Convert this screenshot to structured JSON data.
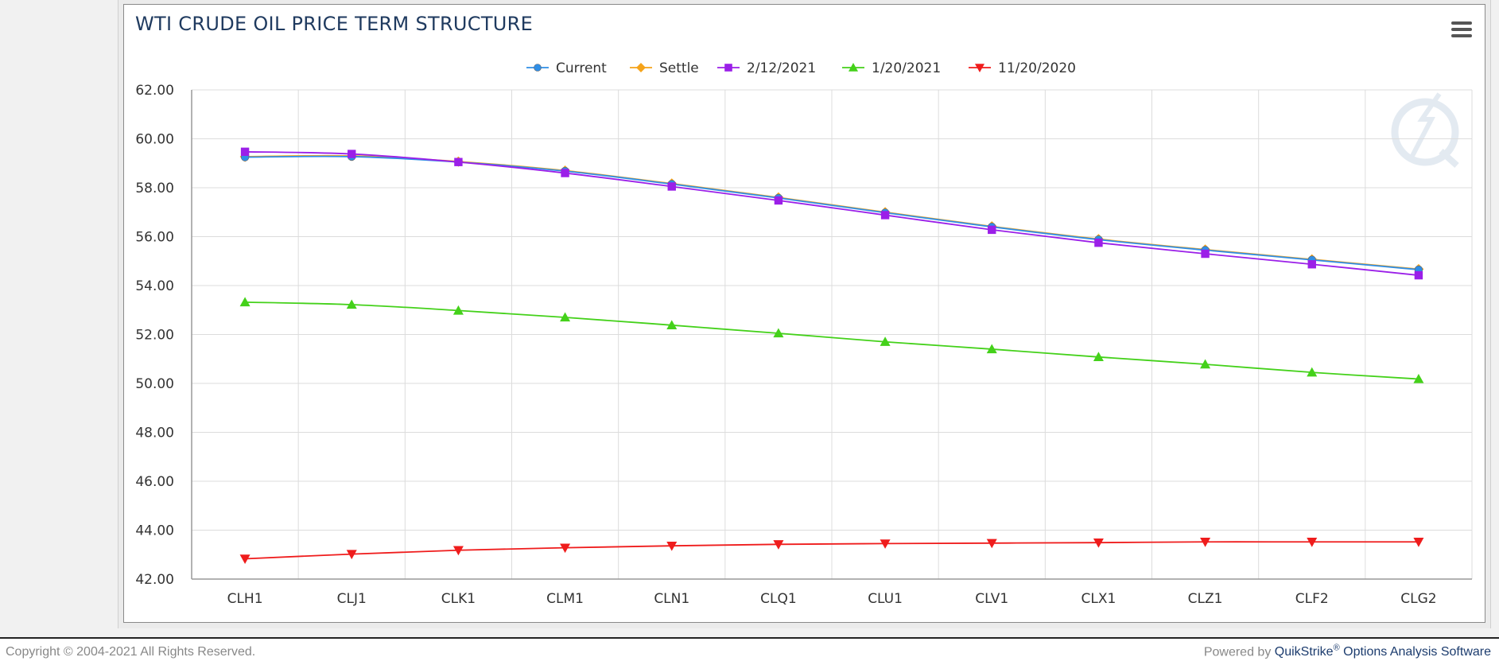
{
  "chart_data": {
    "type": "line",
    "title": "WTI CRUDE OIL PRICE TERM STRUCTURE",
    "categories": [
      "CLH1",
      "CLJ1",
      "CLK1",
      "CLM1",
      "CLN1",
      "CLQ1",
      "CLU1",
      "CLV1",
      "CLX1",
      "CLZ1",
      "CLF2",
      "CLG2"
    ],
    "ylim": [
      42,
      62
    ],
    "yticks": [
      42,
      44,
      46,
      48,
      50,
      52,
      54,
      56,
      58,
      60,
      62
    ],
    "ytick_labels": [
      "42.00",
      "44.00",
      "46.00",
      "48.00",
      "50.00",
      "52.00",
      "54.00",
      "56.00",
      "58.00",
      "60.00",
      "62.00"
    ],
    "grid": true,
    "legend_position": "top-center",
    "series": [
      {
        "name": "Current",
        "color": "#2f8ee6",
        "marker": "circle",
        "values": [
          59.25,
          59.27,
          59.05,
          58.68,
          58.15,
          57.58,
          56.98,
          56.4,
          55.88,
          55.45,
          55.05,
          54.65
        ]
      },
      {
        "name": "Settle",
        "color": "#f5a31a",
        "marker": "diamond",
        "values": [
          59.27,
          59.3,
          59.07,
          58.7,
          58.17,
          57.6,
          57.0,
          56.42,
          55.9,
          55.47,
          55.07,
          54.67
        ]
      },
      {
        "name": "2/12/2021",
        "color": "#9b1fe8",
        "marker": "square",
        "values": [
          59.47,
          59.38,
          59.05,
          58.6,
          58.05,
          57.48,
          56.88,
          56.28,
          55.75,
          55.3,
          54.87,
          54.42
        ]
      },
      {
        "name": "1/20/2021",
        "color": "#44d11a",
        "marker": "triangle",
        "values": [
          53.32,
          53.22,
          52.98,
          52.7,
          52.38,
          52.05,
          51.7,
          51.4,
          51.08,
          50.78,
          50.45,
          50.18
        ]
      },
      {
        "name": "11/20/2020",
        "color": "#ef1c1c",
        "marker": "triangle-down",
        "values": [
          42.83,
          43.02,
          43.18,
          43.28,
          43.36,
          43.42,
          43.45,
          43.47,
          43.49,
          43.52,
          43.52,
          43.52
        ]
      }
    ]
  },
  "footer": {
    "copyright": "Copyright © 2004-2021 All Rights Reserved.",
    "powered_by": "Powered by",
    "brand": "QuikStrike",
    "brand_mark": "®",
    "product": " Options Analysis Software"
  },
  "icons": {
    "menu": "hamburger-menu-icon",
    "watermark": "quikstrike-logo"
  }
}
